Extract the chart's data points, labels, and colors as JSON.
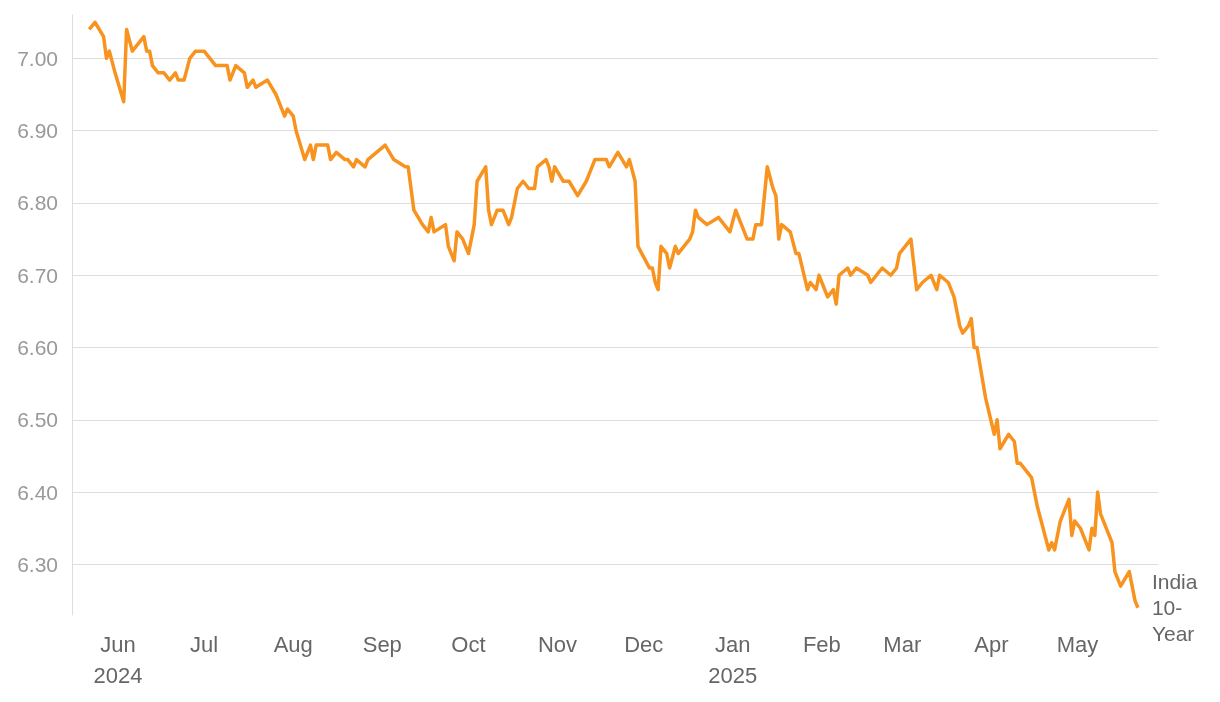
{
  "chart_data": {
    "type": "line",
    "marker": "none",
    "grid": "y",
    "xlim": [
      "2024-05-16",
      "2025-05-29"
    ],
    "xticks": [
      {
        "value": "2024-06-01",
        "label": "Jun\n2024"
      },
      {
        "value": "2024-07-01",
        "label": "Jul"
      },
      {
        "value": "2024-08-01",
        "label": "Aug"
      },
      {
        "value": "2024-09-01",
        "label": "Sep"
      },
      {
        "value": "2024-10-01",
        "label": "Oct"
      },
      {
        "value": "2024-11-01",
        "label": "Nov"
      },
      {
        "value": "2024-12-01",
        "label": "Dec"
      },
      {
        "value": "2025-01-01",
        "label": "Jan\n2025"
      },
      {
        "value": "2025-02-01",
        "label": "Feb"
      },
      {
        "value": "2025-03-01",
        "label": "Mar"
      },
      {
        "value": "2025-04-01",
        "label": "Apr"
      },
      {
        "value": "2025-05-01",
        "label": "May"
      }
    ],
    "ylim": [
      6.23,
      7.06
    ],
    "yticks": [
      {
        "value": 6.3,
        "label": "6.30"
      },
      {
        "value": 6.4,
        "label": "6.40"
      },
      {
        "value": 6.5,
        "label": "6.50"
      },
      {
        "value": 6.6,
        "label": "6.60"
      },
      {
        "value": 6.7,
        "label": "6.70"
      },
      {
        "value": 6.8,
        "label": "6.80"
      },
      {
        "value": 6.9,
        "label": "6.90"
      },
      {
        "value": 7.0,
        "label": "7.00"
      }
    ],
    "series": [
      {
        "name": "India 10-Year",
        "color": "#f7931e",
        "x": [
          "2024-05-22",
          "2024-05-24",
          "2024-05-27",
          "2024-05-28",
          "2024-05-29",
          "2024-05-31",
          "2024-06-03",
          "2024-06-04",
          "2024-06-06",
          "2024-06-10",
          "2024-06-11",
          "2024-06-12",
          "2024-06-13",
          "2024-06-15",
          "2024-06-17",
          "2024-06-19",
          "2024-06-21",
          "2024-06-22",
          "2024-06-24",
          "2024-06-26",
          "2024-06-28",
          "2024-07-01",
          "2024-07-03",
          "2024-07-05",
          "2024-07-09",
          "2024-07-10",
          "2024-07-12",
          "2024-07-15",
          "2024-07-16",
          "2024-07-18",
          "2024-07-19",
          "2024-07-23",
          "2024-07-26",
          "2024-07-29",
          "2024-07-30",
          "2024-08-01",
          "2024-08-02",
          "2024-08-05",
          "2024-08-07",
          "2024-08-08",
          "2024-08-09",
          "2024-08-12",
          "2024-08-13",
          "2024-08-14",
          "2024-08-16",
          "2024-08-19",
          "2024-08-20",
          "2024-08-22",
          "2024-08-23",
          "2024-08-26",
          "2024-08-27",
          "2024-08-30",
          "2024-09-02",
          "2024-09-05",
          "2024-09-09",
          "2024-09-10",
          "2024-09-12",
          "2024-09-15",
          "2024-09-17",
          "2024-09-18",
          "2024-09-19",
          "2024-09-23",
          "2024-09-24",
          "2024-09-26",
          "2024-09-27",
          "2024-09-29",
          "2024-10-01",
          "2024-10-03",
          "2024-10-04",
          "2024-10-07",
          "2024-10-08",
          "2024-10-09",
          "2024-10-11",
          "2024-10-13",
          "2024-10-15",
          "2024-10-16",
          "2024-10-18",
          "2024-10-20",
          "2024-10-22",
          "2024-10-24",
          "2024-10-25",
          "2024-10-28",
          "2024-10-29",
          "2024-10-30",
          "2024-10-31",
          "2024-11-03",
          "2024-11-05",
          "2024-11-08",
          "2024-11-11",
          "2024-11-12",
          "2024-11-14",
          "2024-11-18",
          "2024-11-19",
          "2024-11-22",
          "2024-11-25",
          "2024-11-26",
          "2024-11-28",
          "2024-11-29",
          "2024-12-03",
          "2024-12-04",
          "2024-12-05",
          "2024-12-06",
          "2024-12-07",
          "2024-12-09",
          "2024-12-10",
          "2024-12-12",
          "2024-12-13",
          "2024-12-17",
          "2024-12-18",
          "2024-12-19",
          "2024-12-20",
          "2024-12-23",
          "2024-12-27",
          "2024-12-29",
          "2024-12-31",
          "2025-01-02",
          "2025-01-04",
          "2025-01-06",
          "2025-01-08",
          "2025-01-09",
          "2025-01-11",
          "2025-01-12",
          "2025-01-13",
          "2025-01-15",
          "2025-01-16",
          "2025-01-17",
          "2025-01-18",
          "2025-01-21",
          "2025-01-23",
          "2025-01-24",
          "2025-01-27",
          "2025-01-28",
          "2025-01-30",
          "2025-01-31",
          "2025-02-03",
          "2025-02-05",
          "2025-02-06",
          "2025-02-07",
          "2025-02-10",
          "2025-02-11",
          "2025-02-13",
          "2025-02-17",
          "2025-02-18",
          "2025-02-20",
          "2025-02-22",
          "2025-02-25",
          "2025-02-27",
          "2025-02-28",
          "2025-03-04",
          "2025-03-06",
          "2025-03-08",
          "2025-03-11",
          "2025-03-13",
          "2025-03-14",
          "2025-03-17",
          "2025-03-19",
          "2025-03-20",
          "2025-03-21",
          "2025-03-22",
          "2025-03-24",
          "2025-03-25",
          "2025-03-26",
          "2025-03-27",
          "2025-03-30",
          "2025-04-02",
          "2025-04-03",
          "2025-04-04",
          "2025-04-07",
          "2025-04-09",
          "2025-04-10",
          "2025-04-11",
          "2025-04-15",
          "2025-04-17",
          "2025-04-21",
          "2025-04-22",
          "2025-04-23",
          "2025-04-25",
          "2025-04-28",
          "2025-04-29",
          "2025-04-30",
          "2025-05-02",
          "2025-05-05",
          "2025-05-06",
          "2025-05-07",
          "2025-05-08",
          "2025-05-09",
          "2025-05-13",
          "2025-05-14",
          "2025-05-16",
          "2025-05-19",
          "2025-05-21",
          "2025-05-22"
        ],
        "values": [
          7.04,
          7.05,
          7.03,
          7.0,
          7.01,
          6.98,
          6.94,
          7.04,
          7.01,
          7.03,
          7.01,
          7.01,
          6.99,
          6.98,
          6.98,
          6.97,
          6.98,
          6.97,
          6.97,
          7.0,
          7.01,
          7.01,
          7.0,
          6.99,
          6.99,
          6.97,
          6.99,
          6.98,
          6.96,
          6.97,
          6.96,
          6.97,
          6.95,
          6.92,
          6.93,
          6.92,
          6.9,
          6.86,
          6.88,
          6.86,
          6.88,
          6.88,
          6.88,
          6.86,
          6.87,
          6.86,
          6.86,
          6.85,
          6.86,
          6.85,
          6.86,
          6.87,
          6.88,
          6.86,
          6.85,
          6.85,
          6.79,
          6.77,
          6.76,
          6.78,
          6.76,
          6.77,
          6.74,
          6.72,
          6.76,
          6.75,
          6.73,
          6.77,
          6.83,
          6.85,
          6.79,
          6.77,
          6.79,
          6.79,
          6.77,
          6.78,
          6.82,
          6.83,
          6.82,
          6.82,
          6.85,
          6.86,
          6.85,
          6.83,
          6.85,
          6.83,
          6.83,
          6.81,
          6.83,
          6.84,
          6.86,
          6.86,
          6.85,
          6.87,
          6.85,
          6.86,
          6.83,
          6.74,
          6.71,
          6.71,
          6.69,
          6.68,
          6.74,
          6.73,
          6.71,
          6.74,
          6.73,
          6.75,
          6.76,
          6.79,
          6.78,
          6.77,
          6.78,
          6.77,
          6.76,
          6.79,
          6.77,
          6.75,
          6.75,
          6.77,
          6.77,
          6.81,
          6.85,
          6.82,
          6.81,
          6.75,
          6.77,
          6.76,
          6.73,
          6.73,
          6.68,
          6.69,
          6.68,
          6.7,
          6.67,
          6.68,
          6.66,
          6.7,
          6.71,
          6.7,
          6.71,
          6.7,
          6.69,
          6.7,
          6.71,
          6.7,
          6.71,
          6.73,
          6.75,
          6.68,
          6.69,
          6.7,
          6.68,
          6.7,
          6.69,
          6.67,
          6.65,
          6.63,
          6.62,
          6.63,
          6.64,
          6.6,
          6.6,
          6.53,
          6.48,
          6.5,
          6.46,
          6.48,
          6.47,
          6.44,
          6.44,
          6.42,
          6.38,
          6.32,
          6.33,
          6.32,
          6.36,
          6.39,
          6.34,
          6.36,
          6.35,
          6.32,
          6.35,
          6.34,
          6.4,
          6.37,
          6.33,
          6.29,
          6.27,
          6.29,
          6.25,
          6.24
        ]
      }
    ]
  }
}
